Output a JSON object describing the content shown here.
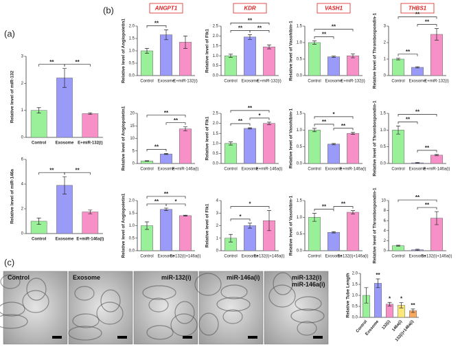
{
  "panels": {
    "a": "(a)",
    "b": "(b)",
    "c": "(c)"
  },
  "images": [
    "Control",
    "Exosome",
    "miR-132(i)",
    "miR-146a(i)",
    "miR-132(i)\nmiR-146a(i)"
  ],
  "chart_data": [
    {
      "type": "bar",
      "ylabel": "Relative level of miR-132",
      "categories": [
        "Control",
        "Exosome",
        "E+miR-132(i)"
      ],
      "values": [
        1.0,
        2.2,
        0.88
      ],
      "errors": [
        0.1,
        0.35,
        0.03
      ],
      "colors": [
        "#99f099",
        "#9a9af8",
        "#f890c8"
      ],
      "ylim": [
        0,
        3
      ],
      "yticks": [
        0,
        1,
        2,
        3
      ],
      "significance": [
        {
          "between": [
            0,
            1
          ],
          "label": "**"
        },
        {
          "between": [
            1,
            2
          ],
          "label": "**"
        }
      ]
    },
    {
      "type": "bar",
      "ylabel": "Relative level of miR-146a",
      "categories": [
        "Control",
        "Exosome",
        "E+miR-146a(i)"
      ],
      "values": [
        1.0,
        3.9,
        1.75
      ],
      "errors": [
        0.25,
        0.7,
        0.15
      ],
      "colors": [
        "#99f099",
        "#9a9af8",
        "#f890c8"
      ],
      "ylim": [
        0,
        6
      ],
      "yticks": [
        0,
        2,
        4,
        6
      ],
      "significance": [
        {
          "between": [
            0,
            1
          ],
          "label": "**"
        },
        {
          "between": [
            1,
            2
          ],
          "label": "**"
        }
      ]
    },
    {
      "type": "bar",
      "title": "ANGPT1",
      "ylabel": "Relative level of Angiopoietin1",
      "categories": [
        "Control",
        "Exosome",
        "E+miR-132(i)"
      ],
      "values": [
        1.0,
        1.65,
        1.35
      ],
      "errors": [
        0.1,
        0.2,
        0.25
      ],
      "colors": [
        "#99f099",
        "#9a9af8",
        "#f890c8"
      ],
      "ylim": [
        0,
        2
      ],
      "yticks": [
        {
          "value": 0,
          "label": "0.0"
        },
        0.5,
        {
          "value": 1,
          "label": "1.0"
        },
        1.5,
        {
          "value": 2,
          "label": "2.0"
        }
      ],
      "significance": [
        {
          "between": [
            0,
            1
          ],
          "label": "**"
        }
      ]
    },
    {
      "type": "bar",
      "title": "KDR",
      "ylabel": "Relative level of Flk1",
      "categories": [
        "Control",
        "Exosome",
        "E+miR-132(i)"
      ],
      "values": [
        1.0,
        1.95,
        1.45
      ],
      "errors": [
        0.08,
        0.12,
        0.1
      ],
      "colors": [
        "#99f099",
        "#9a9af8",
        "#f890c8"
      ],
      "ylim": [
        0,
        2.5
      ],
      "yticks": [
        {
          "value": 0,
          "label": "0.0"
        },
        0.5,
        {
          "value": 1,
          "label": "1.0"
        },
        1.5,
        {
          "value": 2,
          "label": "2.0"
        },
        2.5
      ],
      "significance": [
        {
          "between": [
            0,
            1
          ],
          "label": "**"
        },
        {
          "between": [
            1,
            2
          ],
          "label": "**"
        },
        {
          "between": [
            0,
            2
          ],
          "label": "**"
        }
      ]
    },
    {
      "type": "bar",
      "title": "VASH1",
      "ylabel": "Relative level of Vasohibin-1",
      "categories": [
        "Control",
        "Exosome",
        "E+miR-132(i)"
      ],
      "values": [
        1.0,
        0.57,
        0.6
      ],
      "errors": [
        0.05,
        0.02,
        0.06
      ],
      "colors": [
        "#99f099",
        "#9a9af8",
        "#f890c8"
      ],
      "ylim": [
        0,
        1.5
      ],
      "yticks": [
        {
          "value": 0,
          "label": "0.0"
        },
        0.5,
        {
          "value": 1,
          "label": "1.0"
        },
        1.5
      ],
      "significance": [
        {
          "between": [
            0,
            1
          ],
          "label": "**"
        },
        {
          "between": [
            0,
            2
          ],
          "label": "**"
        }
      ]
    },
    {
      "type": "bar",
      "title": "THBS1",
      "ylabel": "Relative level of Thrombospondin-1",
      "categories": [
        "Control",
        "Exosome",
        "E+miR-132(i)"
      ],
      "values": [
        1.0,
        0.5,
        2.5
      ],
      "errors": [
        0.05,
        0.04,
        0.35
      ],
      "colors": [
        "#99f099",
        "#9a9af8",
        "#f890c8"
      ],
      "ylim": [
        0,
        3
      ],
      "yticks": [
        0,
        1,
        2,
        3
      ],
      "significance": [
        {
          "between": [
            0,
            1
          ],
          "label": "**"
        },
        {
          "between": [
            1,
            2
          ],
          "label": "**"
        },
        {
          "between": [
            0,
            2
          ],
          "label": "**"
        }
      ]
    },
    {
      "type": "bar",
      "ylabel": "Relative level of Angiopoietin1",
      "categories": [
        "Control",
        "Exosome",
        "E+miR-146a(i)"
      ],
      "values": [
        1.0,
        3.8,
        13.8
      ],
      "errors": [
        0.1,
        0.2,
        0.8
      ],
      "colors": [
        "#99f099",
        "#9a9af8",
        "#f890c8"
      ],
      "ylim": [
        0,
        20
      ],
      "yticks": [
        0,
        5,
        10,
        15,
        20
      ],
      "significance": [
        {
          "between": [
            0,
            1
          ],
          "label": "**"
        },
        {
          "between": [
            1,
            2
          ],
          "label": "**"
        },
        {
          "between": [
            0,
            2
          ],
          "label": "**"
        }
      ]
    },
    {
      "type": "bar",
      "ylabel": "Relative level of Flk1",
      "categories": [
        "Control",
        "Exosome",
        "E+miR-146a(i)"
      ],
      "values": [
        1.0,
        1.75,
        2.0
      ],
      "errors": [
        0.08,
        0.03,
        0.06
      ],
      "colors": [
        "#99f099",
        "#9a9af8",
        "#f890c8"
      ],
      "ylim": [
        0,
        2.5
      ],
      "yticks": [
        {
          "value": 0,
          "label": "0.0"
        },
        0.5,
        {
          "value": 1,
          "label": "1.0"
        },
        1.5,
        {
          "value": 2,
          "label": "2.0"
        },
        2.5
      ],
      "significance": [
        {
          "between": [
            0,
            1
          ],
          "label": "**"
        },
        {
          "between": [
            1,
            2
          ],
          "label": "*"
        },
        {
          "between": [
            0,
            2
          ],
          "label": "**"
        }
      ]
    },
    {
      "type": "bar",
      "ylabel": "Relative level of Vasohibin-1",
      "categories": [
        "Control",
        "Exosome",
        "E+miR-146a(i)"
      ],
      "values": [
        1.0,
        0.58,
        0.9
      ],
      "errors": [
        0.05,
        0.02,
        0.03
      ],
      "colors": [
        "#99f099",
        "#9a9af8",
        "#f890c8"
      ],
      "ylim": [
        0,
        1.5
      ],
      "yticks": [
        {
          "value": 0,
          "label": "0.0"
        },
        0.5,
        {
          "value": 1,
          "label": "1.0"
        },
        1.5
      ],
      "significance": [
        {
          "between": [
            0,
            1
          ],
          "label": "**"
        },
        {
          "between": [
            1,
            2
          ],
          "label": "**"
        },
        {
          "between": [
            0,
            2
          ],
          "label": "*"
        }
      ]
    },
    {
      "type": "bar",
      "ylabel": "Relative level of Thrombospondin-1",
      "categories": [
        "Control",
        "Exosome",
        "E+miR-146a(i)"
      ],
      "values": [
        1.0,
        0.02,
        0.25
      ],
      "errors": [
        0.12,
        0.01,
        0.02
      ],
      "colors": [
        "#99f099",
        "#9a9af8",
        "#f890c8"
      ],
      "ylim": [
        0,
        1.5
      ],
      "yticks": [
        {
          "value": 0,
          "label": "0.0"
        },
        0.5,
        {
          "value": 1,
          "label": "1.0"
        },
        1.5
      ],
      "significance": [
        {
          "between": [
            0,
            1
          ],
          "label": "**"
        },
        {
          "between": [
            1,
            2
          ],
          "label": "**"
        },
        {
          "between": [
            0,
            2
          ],
          "label": "**"
        }
      ]
    },
    {
      "type": "bar",
      "ylabel": "Relative level of Angiopoietin1",
      "categories": [
        "Control",
        "Exosome",
        "E+132(i)+146a(i)"
      ],
      "values": [
        1.0,
        1.65,
        1.4
      ],
      "errors": [
        0.15,
        0.05,
        0.02
      ],
      "colors": [
        "#99f099",
        "#9a9af8",
        "#f890c8"
      ],
      "ylim": [
        0,
        2
      ],
      "yticks": [
        {
          "value": 0,
          "label": "0.0"
        },
        0.5,
        {
          "value": 1,
          "label": "1.0"
        },
        1.5,
        {
          "value": 2,
          "label": "2.0"
        }
      ],
      "significance": [
        {
          "between": [
            0,
            1
          ],
          "label": "**"
        },
        {
          "between": [
            1,
            2
          ],
          "label": "*"
        },
        {
          "between": [
            0,
            2
          ],
          "label": "**"
        }
      ]
    },
    {
      "type": "bar",
      "ylabel": "Relative level of Flk1",
      "categories": [
        "Control",
        "Exosome",
        "E+132(i)+146a(i)"
      ],
      "values": [
        1.0,
        2.0,
        2.4
      ],
      "errors": [
        0.3,
        0.2,
        0.8
      ],
      "colors": [
        "#99f099",
        "#9a9af8",
        "#f890c8"
      ],
      "ylim": [
        0,
        4
      ],
      "yticks": [
        0,
        1,
        2,
        3,
        4
      ],
      "significance": [
        {
          "between": [
            0,
            1
          ],
          "label": "*"
        },
        {
          "between": [
            0,
            2
          ],
          "label": "*"
        }
      ]
    },
    {
      "type": "bar",
      "ylabel": "Relative level of Vasohibin-1",
      "categories": [
        "Control",
        "Exosome",
        "E+132(i)+146a(i)"
      ],
      "values": [
        1.0,
        0.55,
        1.15
      ],
      "errors": [
        0.12,
        0.02,
        0.05
      ],
      "colors": [
        "#99f099",
        "#9a9af8",
        "#f890c8"
      ],
      "ylim": [
        0,
        1.5
      ],
      "yticks": [
        {
          "value": 0,
          "label": "0.0"
        },
        0.5,
        {
          "value": 1,
          "label": "1.0"
        },
        1.5
      ],
      "significance": [
        {
          "between": [
            0,
            1
          ],
          "label": "**"
        },
        {
          "between": [
            1,
            2
          ],
          "label": "**"
        }
      ]
    },
    {
      "type": "bar",
      "ylabel": "Relative level of Thrombospondin-1",
      "categories": [
        "Control",
        "Exosome",
        "E+132(i)+146a(i)"
      ],
      "values": [
        1.0,
        0.2,
        6.5
      ],
      "errors": [
        0.1,
        0.1,
        1.3
      ],
      "colors": [
        "#99f099",
        "#9a9af8",
        "#f890c8"
      ],
      "ylim": [
        0,
        10
      ],
      "yticks": [
        0,
        2,
        4,
        6,
        8,
        10
      ],
      "significance": [
        {
          "between": [
            1,
            2
          ],
          "label": "**"
        },
        {
          "between": [
            0,
            2
          ],
          "label": "**"
        }
      ]
    },
    {
      "type": "bar",
      "ylabel": "Relative Tube Length",
      "categories": [
        "Control",
        "Exosome",
        "132(i)",
        "146a(i)",
        "132(i)+146a(i)"
      ],
      "values": [
        1.0,
        1.55,
        0.6,
        0.55,
        0.3
      ],
      "errors": [
        0.35,
        0.2,
        0.08,
        0.12,
        0.08
      ],
      "colors": [
        "#99f099",
        "#9a9af8",
        "#f890c8",
        "#fbe77a",
        "#fba860"
      ],
      "ylim": [
        0,
        2
      ],
      "yticks": [
        {
          "value": 0,
          "label": "0.0"
        },
        0.5,
        {
          "value": 1,
          "label": "1.0"
        },
        1.5,
        {
          "value": 2,
          "label": "2.0"
        }
      ],
      "annotations": [
        {
          "at": 1,
          "label": "**"
        },
        {
          "at": 2,
          "label": "*"
        },
        {
          "at": 3,
          "label": "*"
        },
        {
          "at": 4,
          "label": "**"
        }
      ]
    }
  ]
}
